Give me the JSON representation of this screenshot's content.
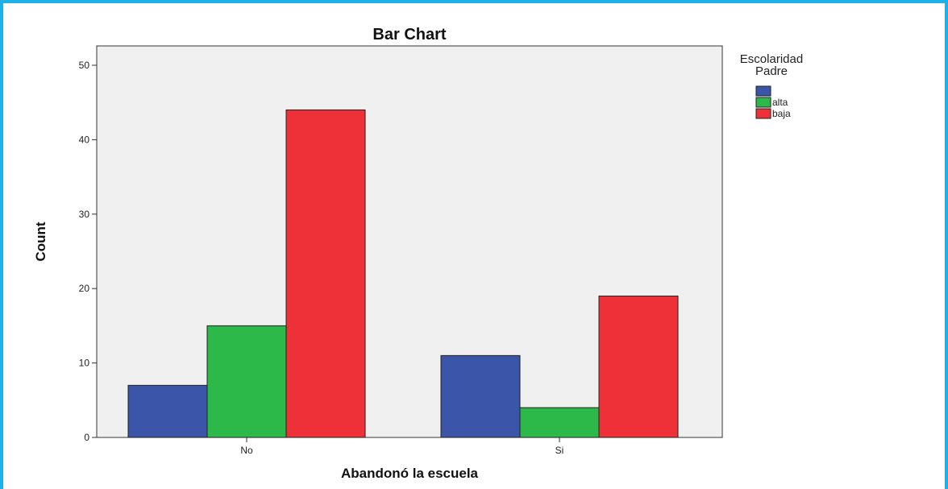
{
  "chart_data": {
    "type": "bar",
    "title": "Bar Chart",
    "xlabel": "Abandonó la escuela",
    "ylabel": "Count",
    "categories": [
      "No",
      "Si"
    ],
    "ylim": [
      0,
      50
    ],
    "yticks": [
      0,
      10,
      20,
      30,
      40,
      50
    ],
    "grid": false,
    "legend": {
      "title_line1": "Escolaridad",
      "title_line2": "Padre",
      "placement": "top-right"
    },
    "series": [
      {
        "name": "",
        "color": "#3b56a8",
        "values": [
          7,
          11
        ]
      },
      {
        "name": "alta",
        "color": "#2db84a",
        "values": [
          15,
          4
        ]
      },
      {
        "name": "baja",
        "color": "#ee3039",
        "values": [
          44,
          19
        ]
      }
    ]
  }
}
